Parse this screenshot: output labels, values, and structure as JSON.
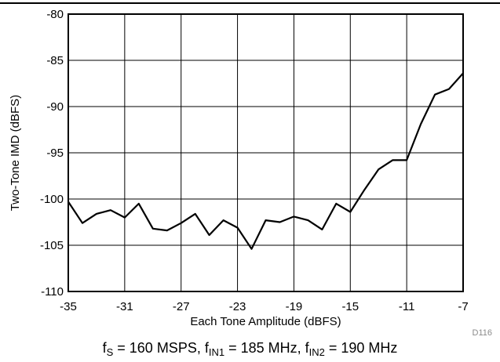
{
  "chart_data": {
    "type": "line",
    "title": "",
    "xlabel": "Each Tone Amplitude (dBFS)",
    "ylabel": "Two-Tone IMD (dBFS)",
    "xlim": [
      -35,
      -7
    ],
    "ylim": [
      -110,
      -80
    ],
    "xticks": [
      -35,
      -31,
      -27,
      -23,
      -19,
      -15,
      -11,
      -7
    ],
    "yticks": [
      -80,
      -85,
      -90,
      -95,
      -100,
      -105,
      -110
    ],
    "grid": true,
    "legend": "none",
    "series": [
      {
        "color": "#000000",
        "x": [
          -35,
          -34,
          -33,
          -32,
          -31,
          -30,
          -29,
          -28,
          -27,
          -26,
          -25,
          -24,
          -23,
          -22,
          -21,
          -20,
          -19,
          -18,
          -17,
          -16,
          -15,
          -14,
          -13,
          -12,
          -11,
          -10,
          -9,
          -8,
          -7
        ],
        "y": [
          -100.3,
          -102.6,
          -101.6,
          -101.2,
          -102.0,
          -100.5,
          -103.2,
          -103.4,
          -102.6,
          -101.6,
          -103.9,
          -102.3,
          -103.1,
          -105.4,
          -102.3,
          -102.5,
          -101.9,
          -102.3,
          -103.3,
          -100.5,
          -101.4,
          -99.0,
          -96.8,
          -95.8,
          -95.8,
          -91.9,
          -88.7,
          -88.1,
          -86.4
        ]
      }
    ],
    "watermark": "D116"
  },
  "caption": {
    "fs_sym": "f",
    "fs_sub": "S",
    "fs_val": " = 160 MSPS, ",
    "f1_sym": "f",
    "f1_sub": "IN1",
    "f1_val": " = 185 MHz, ",
    "f2_sym": "f",
    "f2_sub": "IN2",
    "f2_val": " = 190 MHz"
  }
}
